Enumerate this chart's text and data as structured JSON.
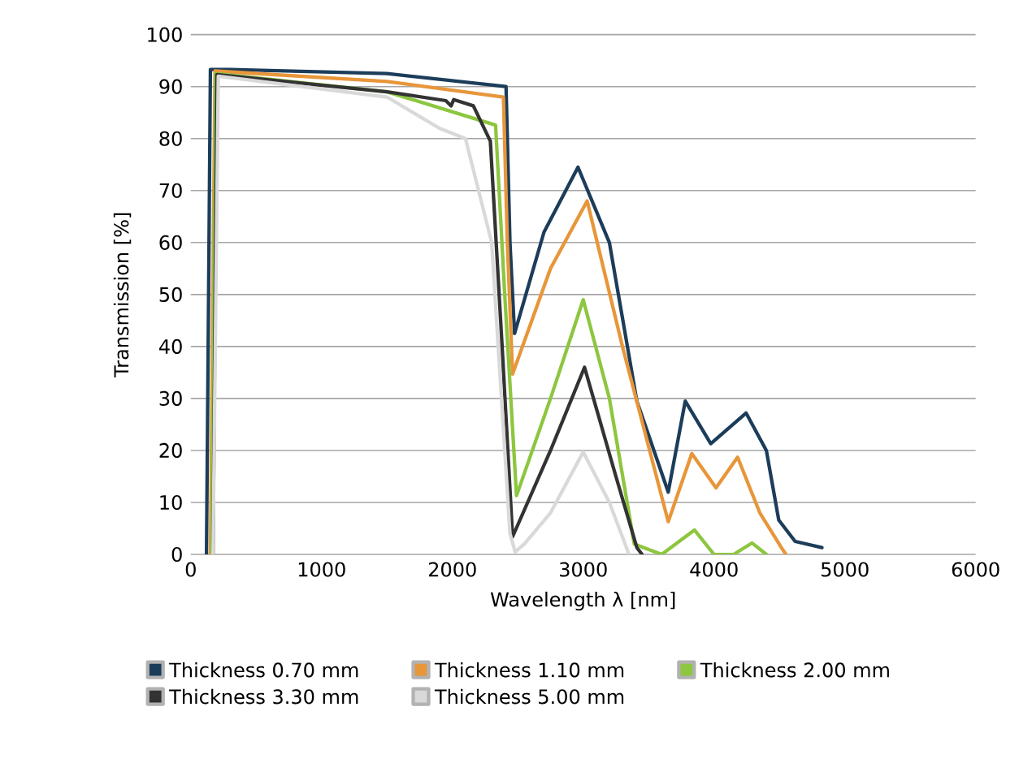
{
  "chart_data": {
    "type": "line",
    "xlabel": "Wavelength λ [nm]",
    "ylabel": "Transmission [%]",
    "xlim": [
      0,
      6000
    ],
    "ylim": [
      0,
      100
    ],
    "xticks": [
      0,
      1000,
      2000,
      3000,
      4000,
      5000,
      6000
    ],
    "yticks": [
      0,
      10,
      20,
      30,
      40,
      50,
      60,
      70,
      80,
      90,
      100
    ],
    "grid": "y",
    "legend": "bottom",
    "line_style": "solid",
    "marker": "none",
    "series": [
      {
        "name": "Thickness 0.70 mm",
        "color": "#1c3d5a",
        "x": [
          120,
          150,
          300,
          1500,
          2410,
          2440,
          2475,
          2700,
          2960,
          3200,
          3410,
          3650,
          3780,
          3975,
          4245,
          4400,
          4495,
          4620,
          4825
        ],
        "values": [
          0,
          93.3,
          93.3,
          92.5,
          90,
          60,
          42.5,
          62,
          74.5,
          60,
          29.5,
          12,
          29.5,
          21.3,
          27.2,
          20,
          6.6,
          2.5,
          1.3
        ]
      },
      {
        "name": "Thickness 1.10 mm",
        "color": "#e8963a",
        "x": [
          150,
          185,
          1500,
          2390,
          2420,
          2460,
          2750,
          3030,
          3300,
          3650,
          3830,
          4015,
          4180,
          4350,
          4515,
          4550
        ],
        "values": [
          0,
          93,
          91,
          88,
          60,
          34.7,
          55,
          68,
          40,
          6.3,
          19.4,
          12.8,
          18.7,
          8,
          1.3,
          0
        ]
      },
      {
        "name": "Thickness 2.00 mm",
        "color": "#8dc63f",
        "x": [
          160,
          190,
          1500,
          2330,
          2400,
          2490,
          2750,
          3000,
          3200,
          3390,
          3600,
          3850,
          4000,
          4150,
          4290,
          4400
        ],
        "values": [
          0,
          92.5,
          89,
          82.6,
          50,
          11.3,
          30,
          49,
          30,
          2,
          0,
          4.7,
          0,
          0,
          2.2,
          0
        ]
      },
      {
        "name": "Thickness 3.30 mm",
        "color": "#333333",
        "x": [
          170,
          200,
          1500,
          1950,
          1990,
          2010,
          2160,
          2290,
          2380,
          2460,
          2750,
          3010,
          3250,
          3410,
          3450
        ],
        "values": [
          0,
          92.3,
          89,
          87.3,
          86.3,
          87.5,
          86.3,
          79.5,
          40,
          3.4,
          20,
          36,
          15,
          1.3,
          0
        ]
      },
      {
        "name": "Thickness 5.00 mm",
        "color": "#d9d9d9",
        "x": [
          170,
          210,
          1500,
          1900,
          2100,
          2300,
          2400,
          2440,
          2480,
          2550,
          2750,
          3000,
          3200,
          3350
        ],
        "values": [
          0,
          92,
          88,
          82,
          80,
          60,
          20,
          4,
          0.5,
          2,
          8,
          19.7,
          10,
          0
        ]
      }
    ]
  }
}
